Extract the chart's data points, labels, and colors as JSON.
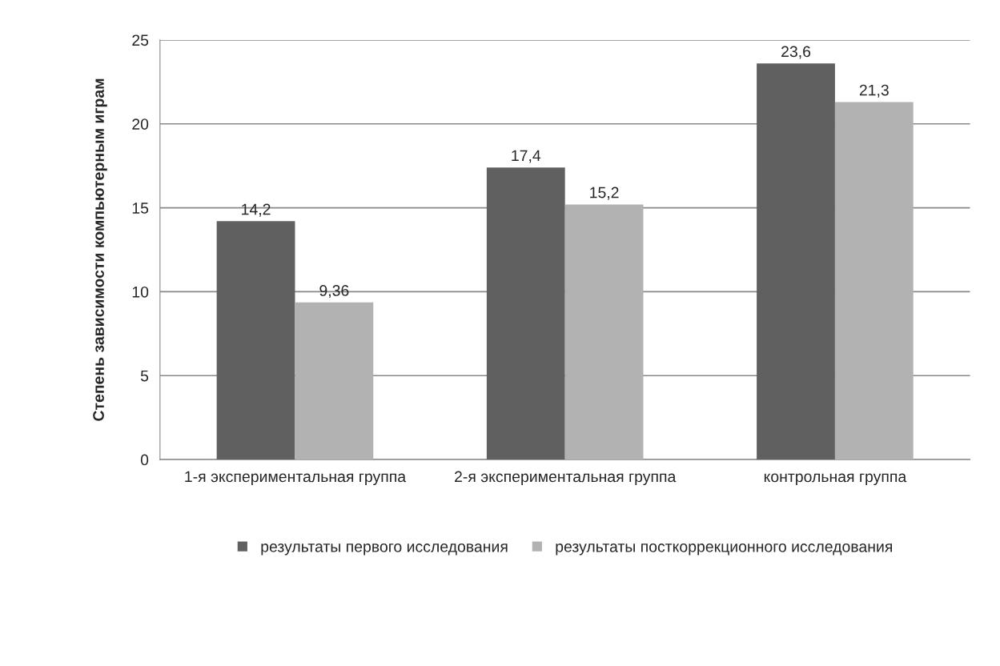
{
  "chart_data": {
    "type": "bar",
    "ylabel": "Степень зависимости компьютерным играм",
    "categories": [
      "1-я экспериментальная группа",
      "2-я экспериментальная группа",
      "контрольная группа"
    ],
    "series": [
      {
        "name": "результаты первого исследования",
        "color": "#606060",
        "values": [
          14.2,
          17.4,
          23.6
        ],
        "value_labels": [
          "14,2",
          "17,4",
          "23,6"
        ]
      },
      {
        "name": "результаты посткоррекционного исследования",
        "color": "#b2b2b2",
        "values": [
          9.36,
          15.2,
          21.3
        ],
        "value_labels": [
          "9,36",
          "15,2",
          "21,3"
        ]
      }
    ],
    "ylim": [
      0,
      25
    ],
    "yticks": [
      0,
      5,
      10,
      15,
      20,
      25
    ],
    "grid": "y",
    "legend": "bottom"
  }
}
